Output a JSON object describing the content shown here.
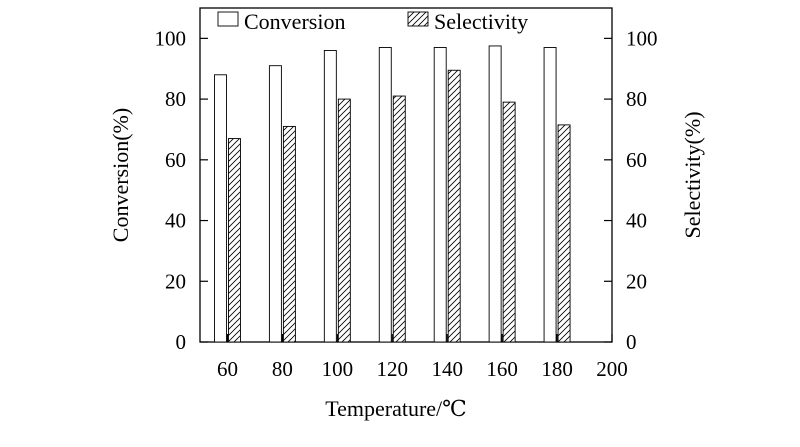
{
  "chart_data": {
    "type": "bar",
    "title": "",
    "xlabel": "Temperature/℃",
    "ylabel": "Conversion(%)",
    "y2label": "Selectivity(%)",
    "x_ticks": [
      60,
      80,
      100,
      120,
      140,
      160,
      180,
      200
    ],
    "xlim": [
      50,
      200
    ],
    "ylim": [
      0,
      110
    ],
    "y_ticks": [
      0,
      20,
      40,
      60,
      80,
      100
    ],
    "y2lim": [
      0,
      110
    ],
    "y2_ticks": [
      0,
      20,
      40,
      60,
      80,
      100
    ],
    "grid": false,
    "legend": "top",
    "categories": [
      60,
      80,
      100,
      120,
      140,
      160,
      180
    ],
    "series": [
      {
        "name": "Conversion",
        "pattern": "none",
        "values": [
          88,
          91,
          96,
          97,
          97,
          97.5,
          97
        ]
      },
      {
        "name": "Selectivity",
        "pattern": "hatch",
        "values": [
          67,
          71,
          80,
          81,
          89.5,
          79,
          71.5
        ]
      }
    ]
  }
}
